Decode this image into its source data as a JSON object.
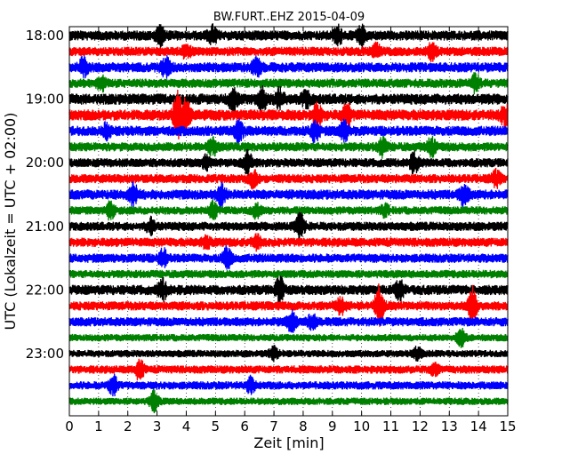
{
  "chart_data": {
    "type": "line",
    "title": "BW.FURT..EHZ 2015-04-09",
    "xlabel": "Zeit  [min]",
    "ylabel": "UTC (Lokalzeit = UTC + 02:00)",
    "xlim": [
      0,
      15
    ],
    "x_ticks": [
      "0",
      "1",
      "2",
      "3",
      "4",
      "5",
      "6",
      "7",
      "8",
      "9",
      "10",
      "11",
      "12",
      "13",
      "14",
      "15"
    ],
    "y_tick_labels": [
      "18:00",
      "19:00",
      "20:00",
      "21:00",
      "22:00",
      "23:00"
    ],
    "grid": "vertical dotted at each minute",
    "trace_interval_min": 15,
    "trace_colors": [
      "#000000",
      "#ff0000",
      "#0000ff",
      "#008000"
    ],
    "series": [
      {
        "start": "18:00",
        "color": "#000000",
        "amplitude": 0.55,
        "events": [
          [
            3.1,
            0.9
          ],
          [
            4.9,
            0.8
          ],
          [
            9.2,
            0.8
          ],
          [
            10.0,
            0.8
          ]
        ]
      },
      {
        "start": "18:15",
        "color": "#ff0000",
        "amplitude": 0.5,
        "events": [
          [
            4.0,
            0.7
          ],
          [
            10.5,
            0.6
          ],
          [
            12.4,
            0.7
          ]
        ]
      },
      {
        "start": "18:30",
        "color": "#0000ff",
        "amplitude": 0.55,
        "events": [
          [
            0.5,
            1.0
          ],
          [
            3.3,
            0.9
          ],
          [
            6.4,
            0.8
          ]
        ]
      },
      {
        "start": "18:45",
        "color": "#008000",
        "amplitude": 0.5,
        "events": [
          [
            1.1,
            0.7
          ],
          [
            13.9,
            0.8
          ]
        ]
      },
      {
        "start": "19:00",
        "color": "#000000",
        "amplitude": 0.6,
        "events": [
          [
            5.6,
            1.0
          ],
          [
            6.6,
            1.0
          ],
          [
            7.2,
            0.9
          ],
          [
            8.1,
            0.7
          ]
        ]
      },
      {
        "start": "19:15",
        "color": "#ff0000",
        "amplitude": 0.6,
        "events": [
          [
            3.7,
            2.2
          ],
          [
            4.0,
            1.6
          ],
          [
            8.5,
            1.0
          ],
          [
            9.5,
            1.0
          ],
          [
            14.9,
            0.9
          ]
        ]
      },
      {
        "start": "19:30",
        "color": "#0000ff",
        "amplitude": 0.55,
        "events": [
          [
            1.3,
            0.7
          ],
          [
            5.8,
            1.0
          ],
          [
            8.4,
            1.0
          ],
          [
            9.4,
            0.9
          ]
        ]
      },
      {
        "start": "19:45",
        "color": "#008000",
        "amplitude": 0.5,
        "events": [
          [
            4.9,
            0.8
          ],
          [
            10.7,
            0.8
          ],
          [
            12.4,
            0.9
          ]
        ]
      },
      {
        "start": "20:00",
        "color": "#000000",
        "amplitude": 0.5,
        "events": [
          [
            6.1,
            1.0
          ],
          [
            4.7,
            0.6
          ],
          [
            11.8,
            0.9
          ]
        ]
      },
      {
        "start": "20:15",
        "color": "#ff0000",
        "amplitude": 0.5,
        "events": [
          [
            6.3,
            0.8
          ],
          [
            14.6,
            0.7
          ]
        ]
      },
      {
        "start": "20:30",
        "color": "#0000ff",
        "amplitude": 0.55,
        "events": [
          [
            2.2,
            1.0
          ],
          [
            5.2,
            0.9
          ],
          [
            13.5,
            1.0
          ]
        ]
      },
      {
        "start": "20:45",
        "color": "#008000",
        "amplitude": 0.45,
        "events": [
          [
            1.4,
            0.8
          ],
          [
            4.9,
            0.8
          ],
          [
            6.4,
            0.6
          ],
          [
            10.8,
            0.5
          ]
        ]
      },
      {
        "start": "21:00",
        "color": "#000000",
        "amplitude": 0.5,
        "events": [
          [
            2.8,
            0.7
          ],
          [
            7.9,
            1.2
          ]
        ]
      },
      {
        "start": "21:15",
        "color": "#ff0000",
        "amplitude": 0.5,
        "events": [
          [
            4.7,
            0.5
          ],
          [
            6.4,
            0.6
          ]
        ]
      },
      {
        "start": "21:30",
        "color": "#0000ff",
        "amplitude": 0.5,
        "events": [
          [
            3.2,
            0.8
          ],
          [
            5.4,
            1.0
          ]
        ]
      },
      {
        "start": "21:45",
        "color": "#008000",
        "amplitude": 0.45,
        "events": []
      },
      {
        "start": "22:00",
        "color": "#000000",
        "amplitude": 0.55,
        "events": [
          [
            3.2,
            0.9
          ],
          [
            7.2,
            1.2
          ],
          [
            11.3,
            0.8
          ]
        ]
      },
      {
        "start": "22:15",
        "color": "#ff0000",
        "amplitude": 0.5,
        "events": [
          [
            10.6,
            2.0
          ],
          [
            13.8,
            1.8
          ],
          [
            9.3,
            0.8
          ]
        ]
      },
      {
        "start": "22:30",
        "color": "#0000ff",
        "amplitude": 0.5,
        "events": [
          [
            7.6,
            0.9
          ],
          [
            8.3,
            0.7
          ]
        ]
      },
      {
        "start": "22:45",
        "color": "#008000",
        "amplitude": 0.4,
        "events": [
          [
            13.4,
            0.8
          ]
        ]
      },
      {
        "start": "23:00",
        "color": "#000000",
        "amplitude": 0.4,
        "events": [
          [
            7.0,
            0.6
          ],
          [
            11.9,
            0.6
          ]
        ]
      },
      {
        "start": "23:15",
        "color": "#ff0000",
        "amplitude": 0.45,
        "events": [
          [
            2.4,
            1.0
          ],
          [
            12.5,
            0.5
          ]
        ]
      },
      {
        "start": "23:30",
        "color": "#0000ff",
        "amplitude": 0.45,
        "events": [
          [
            1.5,
            1.0
          ],
          [
            6.2,
            0.7
          ]
        ]
      },
      {
        "start": "23:45",
        "color": "#008000",
        "amplitude": 0.4,
        "events": [
          [
            2.9,
            1.0
          ]
        ]
      }
    ]
  }
}
